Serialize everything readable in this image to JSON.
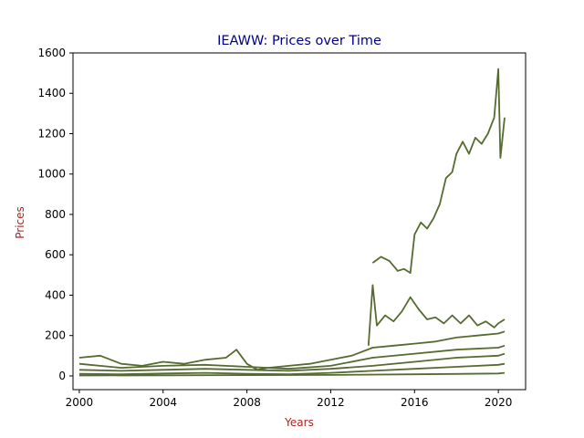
{
  "chart_data": {
    "type": "line",
    "title": "IEAWW: Prices over Time",
    "xlabel": "Years",
    "ylabel": "Prices",
    "xlim": [
      1999.7,
      2021.3
    ],
    "ylim": [
      -68,
      1600
    ],
    "x_ticks": [
      2000,
      2004,
      2008,
      2012,
      2016,
      2020
    ],
    "y_ticks": [
      0,
      200,
      400,
      600,
      800,
      1000,
      1200,
      1400,
      1600
    ],
    "grid": false,
    "legend": "none",
    "colors": {
      "series": "#556b2f",
      "title": "#00008b",
      "axis_label": "#b22222",
      "axes": "#000000"
    },
    "series": [
      {
        "x": [
          2014.0,
          2014.4,
          2014.8,
          2015.2,
          2015.5,
          2015.8,
          2016.0,
          2016.3,
          2016.6,
          2016.9,
          2017.2,
          2017.5,
          2017.8,
          2018.0,
          2018.3,
          2018.6,
          2018.9,
          2019.2,
          2019.5,
          2019.8,
          2020.0,
          2020.1,
          2020.3
        ],
        "y": [
          560,
          590,
          570,
          520,
          530,
          510,
          700,
          760,
          730,
          780,
          850,
          980,
          1010,
          1100,
          1160,
          1100,
          1180,
          1150,
          1200,
          1280,
          1520,
          1080,
          1280
        ]
      },
      {
        "x": [
          2013.8,
          2014.0,
          2014.2,
          2014.6,
          2015.0,
          2015.4,
          2015.8,
          2016.2,
          2016.6,
          2017.0,
          2017.4,
          2017.8,
          2018.2,
          2018.6,
          2019.0,
          2019.4,
          2019.8,
          2020.0,
          2020.3
        ],
        "y": [
          150,
          450,
          250,
          300,
          270,
          320,
          390,
          330,
          280,
          290,
          260,
          300,
          260,
          300,
          250,
          270,
          240,
          260,
          280
        ]
      },
      {
        "x": [
          2000.0,
          2001.0,
          2002.0,
          2003.0,
          2004.0,
          2005.0,
          2006.0,
          2007.0,
          2007.5,
          2008.0,
          2008.5,
          2009.0,
          2010.0,
          2011.0,
          2012.0,
          2013.0,
          2014.0,
          2015.0,
          2016.0,
          2017.0,
          2018.0,
          2019.0,
          2020.0,
          2020.3
        ],
        "y": [
          90,
          100,
          60,
          50,
          70,
          60,
          80,
          90,
          130,
          60,
          30,
          40,
          50,
          60,
          80,
          100,
          140,
          150,
          160,
          170,
          190,
          200,
          210,
          220
        ]
      },
      {
        "x": [
          2000.0,
          2002.0,
          2004.0,
          2006.0,
          2008.0,
          2010.0,
          2012.0,
          2014.0,
          2016.0,
          2018.0,
          2020.0,
          2020.3
        ],
        "y": [
          60,
          40,
          50,
          55,
          45,
          35,
          50,
          90,
          110,
          130,
          140,
          150
        ]
      },
      {
        "x": [
          2000.0,
          2002.0,
          2004.0,
          2006.0,
          2008.0,
          2010.0,
          2012.0,
          2014.0,
          2016.0,
          2018.0,
          2020.0,
          2020.3
        ],
        "y": [
          30,
          25,
          30,
          35,
          30,
          25,
          35,
          50,
          70,
          90,
          100,
          110
        ]
      },
      {
        "x": [
          2000.0,
          2002.0,
          2004.0,
          2006.0,
          2008.0,
          2010.0,
          2012.0,
          2014.0,
          2016.0,
          2018.0,
          2020.0,
          2020.3
        ],
        "y": [
          10,
          8,
          12,
          15,
          10,
          8,
          15,
          25,
          35,
          45,
          55,
          60
        ]
      },
      {
        "x": [
          2000.0,
          2004.0,
          2008.0,
          2012.0,
          2016.0,
          2020.0,
          2020.3
        ],
        "y": [
          2,
          3,
          4,
          5,
          8,
          12,
          15
        ]
      }
    ]
  }
}
